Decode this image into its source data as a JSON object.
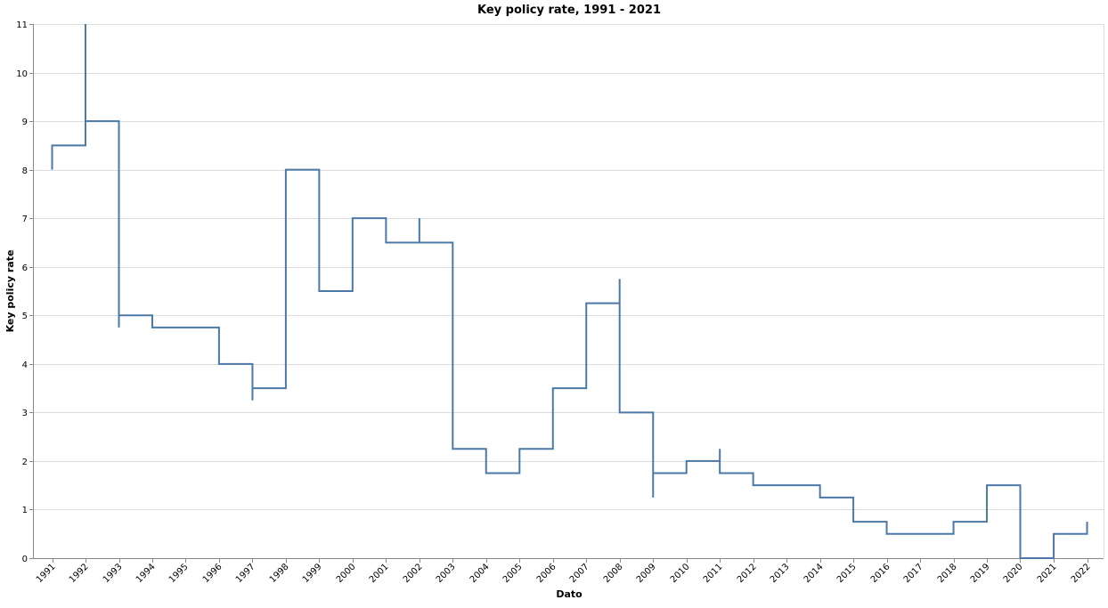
{
  "chart_data": {
    "type": "line",
    "title": "Key policy rate, 1991 - 2021",
    "xlabel": "Dato",
    "ylabel": "Key policy rate",
    "interpolation": "step-after",
    "ylim": [
      0,
      11
    ],
    "yticks": [
      0,
      1,
      2,
      3,
      4,
      5,
      6,
      7,
      8,
      9,
      10,
      11
    ],
    "xticks": [
      "1991",
      "1992",
      "1993",
      "1994",
      "1995",
      "1996",
      "1997",
      "1998",
      "1999",
      "2000",
      "2001",
      "2002",
      "2003",
      "2004",
      "2005",
      "2006",
      "2007",
      "2008",
      "2009",
      "2010",
      "2011",
      "2012",
      "2013",
      "2014",
      "2015",
      "2016",
      "2017",
      "2018",
      "2019",
      "2020",
      "2021",
      "2022"
    ],
    "grid": true,
    "series": [
      {
        "color": "#4c78a8",
        "points": [
          {
            "x": "1991-01-01",
            "y": 8.0
          },
          {
            "x": "1991-01-01",
            "y": 8.5
          },
          {
            "x": "1992-01-01",
            "y": 11.0
          },
          {
            "x": "1992-01-01",
            "y": 9.0
          },
          {
            "x": "1993-01-01",
            "y": 4.75
          },
          {
            "x": "1993-01-01",
            "y": 5.0
          },
          {
            "x": "1994-01-01",
            "y": 4.75
          },
          {
            "x": "1995-01-01",
            "y": 4.75
          },
          {
            "x": "1996-01-01",
            "y": 4.0
          },
          {
            "x": "1997-01-01",
            "y": 3.25
          },
          {
            "x": "1997-01-01",
            "y": 3.5
          },
          {
            "x": "1998-01-01",
            "y": 8.0
          },
          {
            "x": "1999-01-01",
            "y": 5.5
          },
          {
            "x": "2000-01-01",
            "y": 7.0
          },
          {
            "x": "2001-01-01",
            "y": 6.5
          },
          {
            "x": "2002-01-01",
            "y": 7.0
          },
          {
            "x": "2002-01-01",
            "y": 6.5
          },
          {
            "x": "2003-01-01",
            "y": 2.25
          },
          {
            "x": "2004-01-01",
            "y": 1.75
          },
          {
            "x": "2005-01-01",
            "y": 2.25
          },
          {
            "x": "2006-01-01",
            "y": 3.5
          },
          {
            "x": "2007-01-01",
            "y": 5.25
          },
          {
            "x": "2008-01-01",
            "y": 5.75
          },
          {
            "x": "2008-01-01",
            "y": 3.0
          },
          {
            "x": "2009-01-01",
            "y": 1.25
          },
          {
            "x": "2009-01-01",
            "y": 1.75
          },
          {
            "x": "2010-01-01",
            "y": 2.0
          },
          {
            "x": "2011-01-01",
            "y": 2.25
          },
          {
            "x": "2011-01-01",
            "y": 1.75
          },
          {
            "x": "2012-01-01",
            "y": 1.5
          },
          {
            "x": "2013-01-01",
            "y": 1.5
          },
          {
            "x": "2014-01-01",
            "y": 1.25
          },
          {
            "x": "2015-01-01",
            "y": 0.75
          },
          {
            "x": "2016-01-01",
            "y": 0.5
          },
          {
            "x": "2017-01-01",
            "y": 0.5
          },
          {
            "x": "2018-01-01",
            "y": 0.75
          },
          {
            "x": "2019-01-01",
            "y": 1.5
          },
          {
            "x": "2020-01-01",
            "y": 0.0
          },
          {
            "x": "2021-01-01",
            "y": 0.5
          },
          {
            "x": "2022-01-01",
            "y": 0.75
          }
        ]
      }
    ]
  }
}
